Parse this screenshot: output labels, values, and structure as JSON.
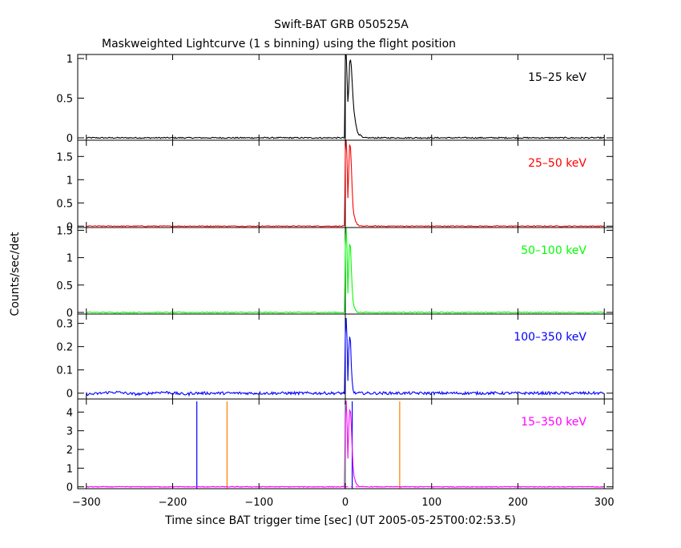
{
  "title": "Swift-BAT GRB 050525A",
  "subtitle": "Maskweighted Lightcurve (1 s binning) using the flight position",
  "xlabel": "Time since BAT trigger time [sec] (UT 2005-05-25T00:02:53.5)",
  "ylabel": "Counts/sec/det",
  "chart_data": {
    "type": "line",
    "title": "Swift-BAT GRB 050525A",
    "subtitle": "Maskweighted Lightcurve (1 s binning) using the flight position",
    "xlabel": "Time since BAT trigger time [sec] (UT 2005-05-25T00:02:53.5)",
    "ylabel": "Counts/sec/det",
    "xlim": [
      -310,
      310
    ],
    "x_ticks": [
      -300,
      -200,
      -100,
      0,
      100,
      200,
      300
    ],
    "x_tick_labels": [
      "−300",
      "−200",
      "−100",
      "0",
      "100",
      "200",
      "300"
    ],
    "grid": false,
    "trigger_time": 0,
    "panels": [
      {
        "band": "15–25 keV",
        "color": "#000000",
        "ylim": [
          -0.03,
          1.05
        ],
        "y_ticks": [
          0,
          0.5,
          1
        ],
        "y_tick_labels": [
          "0",
          "0.5",
          "1"
        ],
        "noise_level": 0.008,
        "peak_profile": [
          [
            -1,
            0.02
          ],
          [
            0,
            0.98
          ],
          [
            1,
            1.05
          ],
          [
            2,
            0.75
          ],
          [
            3,
            0.45
          ],
          [
            4,
            0.62
          ],
          [
            5,
            0.95
          ],
          [
            6,
            0.98
          ],
          [
            7,
            0.9
          ],
          [
            8,
            0.7
          ],
          [
            9,
            0.5
          ],
          [
            10,
            0.35
          ],
          [
            12,
            0.18
          ],
          [
            14,
            0.08
          ],
          [
            16,
            0.04
          ],
          [
            20,
            0.015
          ]
        ]
      },
      {
        "band": "25–50 keV",
        "color": "#ff0000",
        "ylim": [
          -0.03,
          1.85
        ],
        "y_ticks": [
          0,
          0.5,
          1,
          1.5
        ],
        "y_tick_labels": [
          "0",
          "0.5",
          "1",
          "1.5"
        ],
        "noise_level": 0.01,
        "peak_profile": [
          [
            -1,
            0.02
          ],
          [
            0,
            1.6
          ],
          [
            1,
            1.85
          ],
          [
            2,
            1.4
          ],
          [
            3,
            0.6
          ],
          [
            4,
            1.2
          ],
          [
            5,
            1.75
          ],
          [
            6,
            1.7
          ],
          [
            7,
            1.3
          ],
          [
            8,
            0.8
          ],
          [
            9,
            0.4
          ],
          [
            10,
            0.25
          ],
          [
            12,
            0.1
          ],
          [
            14,
            0.04
          ],
          [
            16,
            0.02
          ]
        ]
      },
      {
        "band": "50–100 keV",
        "color": "#00ff00",
        "ylim": [
          -0.03,
          1.55
        ],
        "y_ticks": [
          0,
          0.5,
          1,
          1.5
        ],
        "y_tick_labels": [
          "0",
          "0.5",
          "1",
          "1.5"
        ],
        "noise_level": 0.01,
        "peak_profile": [
          [
            -1,
            0.02
          ],
          [
            0,
            1.2
          ],
          [
            1,
            1.55
          ],
          [
            2,
            1.1
          ],
          [
            3,
            0.35
          ],
          [
            4,
            0.9
          ],
          [
            5,
            1.25
          ],
          [
            6,
            1.2
          ],
          [
            7,
            0.8
          ],
          [
            8,
            0.45
          ],
          [
            9,
            0.2
          ],
          [
            10,
            0.12
          ],
          [
            12,
            0.05
          ],
          [
            14,
            0.02
          ]
        ]
      },
      {
        "band": "100–350 keV",
        "color": "#0000ff",
        "ylim": [
          -0.025,
          0.34
        ],
        "y_ticks": [
          0,
          0.1,
          0.2,
          0.3
        ],
        "y_tick_labels": [
          "0",
          "0.1",
          "0.2",
          "0.3"
        ],
        "noise_level": 0.006,
        "peak_profile": [
          [
            -1,
            0.0
          ],
          [
            0,
            0.25
          ],
          [
            1,
            0.32
          ],
          [
            2,
            0.22
          ],
          [
            3,
            0.05
          ],
          [
            4,
            0.18
          ],
          [
            5,
            0.24
          ],
          [
            6,
            0.22
          ],
          [
            7,
            0.12
          ],
          [
            8,
            0.05
          ],
          [
            9,
            0.02
          ],
          [
            10,
            0.01
          ]
        ]
      },
      {
        "band": "15–350 keV",
        "color": "#ff00ff",
        "ylim": [
          -0.1,
          4.7
        ],
        "y_ticks": [
          0,
          1,
          2,
          3,
          4
        ],
        "y_tick_labels": [
          "0",
          "1",
          "2",
          "3",
          "4"
        ],
        "noise_level": 0.02,
        "peak_profile": [
          [
            -1,
            0.05
          ],
          [
            0,
            3.8
          ],
          [
            1,
            4.6
          ],
          [
            2,
            3.4
          ],
          [
            3,
            1.5
          ],
          [
            4,
            3.2
          ],
          [
            5,
            4.1
          ],
          [
            6,
            4.0
          ],
          [
            7,
            3.2
          ],
          [
            8,
            2.0
          ],
          [
            9,
            1.1
          ],
          [
            10,
            0.6
          ],
          [
            12,
            0.25
          ],
          [
            14,
            0.1
          ],
          [
            16,
            0.05
          ]
        ],
        "markers": [
          {
            "x": -172,
            "color": "#0000ff"
          },
          {
            "x": -137,
            "color": "#ff7f00"
          },
          {
            "x": 0,
            "color": "#0000ff"
          },
          {
            "x": 0,
            "color": "#00ff00"
          },
          {
            "x": 8,
            "color": "#0000ff"
          },
          {
            "x": 63,
            "color": "#ff7f00"
          }
        ]
      }
    ]
  }
}
